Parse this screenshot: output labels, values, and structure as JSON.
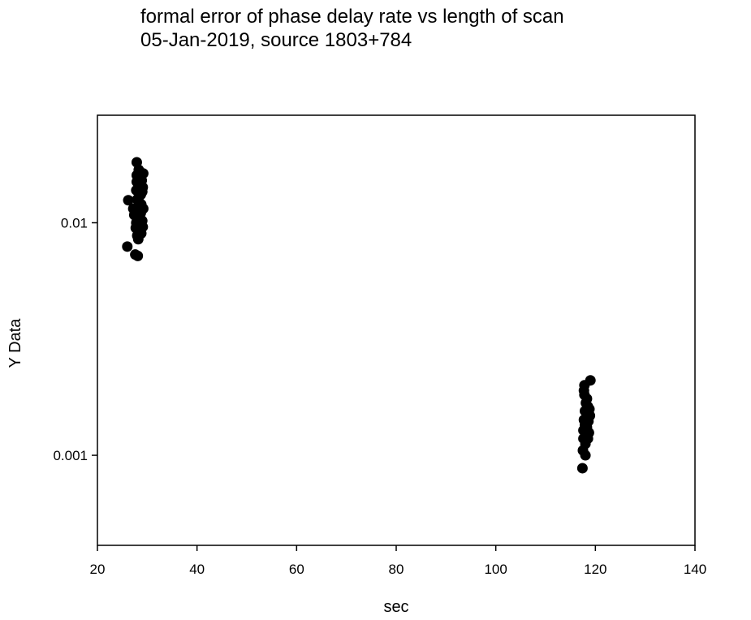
{
  "chart_data": {
    "type": "scatter",
    "title_line1": "formal error of phase delay rate vs length of scan",
    "title_line2": "05-Jan-2019, source 1803+784",
    "xlabel": "sec",
    "ylabel": "Y Data",
    "xlim": [
      20,
      140
    ],
    "ylim": [
      0.00041,
      0.029
    ],
    "yscale": "log",
    "grid": false,
    "xticks": [
      20,
      40,
      60,
      80,
      100,
      120,
      140
    ],
    "xtick_labels": [
      "20",
      "40",
      "60",
      "80",
      "100",
      "120",
      "140"
    ],
    "yticks": [
      0.001,
      0.01
    ],
    "ytick_labels": [
      "0.001",
      "0.01"
    ],
    "marker_color": "#000000",
    "points": [
      [
        26.0,
        0.0079
      ],
      [
        26.2,
        0.0125
      ],
      [
        27.2,
        0.0115
      ],
      [
        27.4,
        0.0108
      ],
      [
        27.6,
        0.0073
      ],
      [
        27.7,
        0.0095
      ],
      [
        27.8,
        0.01
      ],
      [
        27.8,
        0.0138
      ],
      [
        27.9,
        0.0182
      ],
      [
        27.9,
        0.016
      ],
      [
        27.9,
        0.015
      ],
      [
        28.0,
        0.0126
      ],
      [
        28.0,
        0.0112
      ],
      [
        28.0,
        0.0088
      ],
      [
        28.1,
        0.0072
      ],
      [
        28.2,
        0.0085
      ],
      [
        28.3,
        0.0169
      ],
      [
        28.3,
        0.0145
      ],
      [
        28.4,
        0.013
      ],
      [
        28.4,
        0.0118
      ],
      [
        28.5,
        0.0104
      ],
      [
        28.5,
        0.0093
      ],
      [
        28.6,
        0.0098
      ],
      [
        28.6,
        0.0158
      ],
      [
        28.7,
        0.0132
      ],
      [
        28.7,
        0.011
      ],
      [
        28.8,
        0.009
      ],
      [
        28.8,
        0.012
      ],
      [
        28.9,
        0.0152
      ],
      [
        29.0,
        0.0136
      ],
      [
        29.0,
        0.0102
      ],
      [
        29.1,
        0.0096
      ],
      [
        29.1,
        0.0142
      ],
      [
        29.2,
        0.0163
      ],
      [
        29.2,
        0.0115
      ],
      [
        117.4,
        0.00088
      ],
      [
        117.5,
        0.00105
      ],
      [
        117.6,
        0.00118
      ],
      [
        117.6,
        0.00128
      ],
      [
        117.7,
        0.00142
      ],
      [
        117.7,
        0.0019
      ],
      [
        117.8,
        0.002
      ],
      [
        117.8,
        0.00182
      ],
      [
        117.9,
        0.00155
      ],
      [
        117.9,
        0.00135
      ],
      [
        118.0,
        0.00112
      ],
      [
        118.0,
        0.001
      ],
      [
        118.1,
        0.00122
      ],
      [
        118.1,
        0.00168
      ],
      [
        118.2,
        0.00145
      ],
      [
        118.3,
        0.00175
      ],
      [
        118.3,
        0.00132
      ],
      [
        118.4,
        0.00152
      ],
      [
        118.5,
        0.00162
      ],
      [
        118.5,
        0.00118
      ],
      [
        118.6,
        0.0014
      ],
      [
        118.7,
        0.00125
      ],
      [
        118.8,
        0.00158
      ],
      [
        118.9,
        0.00148
      ],
      [
        119.0,
        0.0021
      ]
    ]
  }
}
